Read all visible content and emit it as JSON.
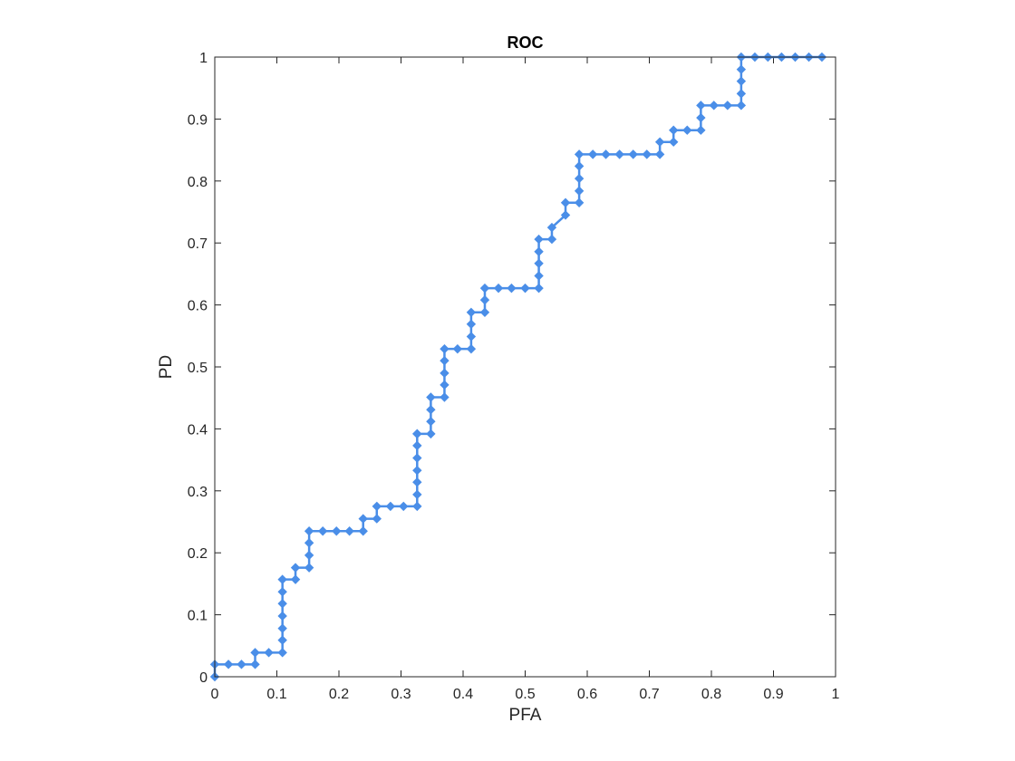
{
  "chart_data": {
    "type": "line",
    "title": "ROC",
    "xlabel": "PFA",
    "ylabel": "PD",
    "xlim": [
      0,
      1
    ],
    "ylim": [
      0,
      1
    ],
    "xticks": [
      "0",
      "0.1",
      "0.2",
      "0.3",
      "0.4",
      "0.5",
      "0.6",
      "0.7",
      "0.8",
      "0.9",
      "1"
    ],
    "yticks": [
      "0",
      "0.1",
      "0.2",
      "0.3",
      "0.4",
      "0.5",
      "0.6",
      "0.7",
      "0.8",
      "0.9",
      "1"
    ],
    "grid": false,
    "box": true,
    "line_style": "step",
    "marker": "diamond",
    "series": [
      {
        "color": "#4a8ee8",
        "x": [
          0,
          0,
          0.022,
          0.043,
          0.065,
          0.065,
          0.087,
          0.109,
          0.109,
          0.109,
          0.109,
          0.109,
          0.109,
          0.109,
          0.13,
          0.13,
          0.152,
          0.152,
          0.152,
          0.152,
          0.174,
          0.196,
          0.217,
          0.239,
          0.239,
          0.261,
          0.261,
          0.283,
          0.304,
          0.326,
          0.326,
          0.326,
          0.326,
          0.326,
          0.326,
          0.326,
          0.326,
          0.348,
          0.348,
          0.348,
          0.348,
          0.37,
          0.37,
          0.37,
          0.37,
          0.37,
          0.391,
          0.413,
          0.413,
          0.413,
          0.413,
          0.435,
          0.435,
          0.435,
          0.457,
          0.478,
          0.5,
          0.522,
          0.522,
          0.522,
          0.522,
          0.522,
          0.543,
          0.543,
          0.565,
          0.565,
          0.587,
          0.587,
          0.587,
          0.587,
          0.587,
          0.609,
          0.63,
          0.652,
          0.674,
          0.696,
          0.717,
          0.717,
          0.739,
          0.739,
          0.761,
          0.783,
          0.783,
          0.783,
          0.804,
          0.826,
          0.848,
          0.848,
          0.848,
          0.848,
          0.848,
          0.87,
          0.891,
          0.913,
          0.935,
          0.957,
          0.978
        ],
        "y": [
          0,
          0.02,
          0.02,
          0.02,
          0.02,
          0.039,
          0.039,
          0.039,
          0.059,
          0.078,
          0.098,
          0.118,
          0.137,
          0.157,
          0.157,
          0.176,
          0.176,
          0.196,
          0.216,
          0.235,
          0.235,
          0.235,
          0.235,
          0.235,
          0.255,
          0.255,
          0.275,
          0.275,
          0.275,
          0.275,
          0.294,
          0.314,
          0.333,
          0.353,
          0.373,
          0.392,
          0.392,
          0.392,
          0.412,
          0.431,
          0.451,
          0.451,
          0.471,
          0.49,
          0.51,
          0.529,
          0.529,
          0.529,
          0.549,
          0.569,
          0.588,
          0.588,
          0.608,
          0.627,
          0.627,
          0.627,
          0.627,
          0.627,
          0.647,
          0.667,
          0.686,
          0.706,
          0.706,
          0.725,
          0.745,
          0.765,
          0.765,
          0.784,
          0.804,
          0.824,
          0.843,
          0.843,
          0.843,
          0.843,
          0.843,
          0.843,
          0.843,
          0.863,
          0.863,
          0.882,
          0.882,
          0.882,
          0.902,
          0.922,
          0.922,
          0.922,
          0.922,
          0.941,
          0.961,
          0.98,
          1.0,
          1.0,
          1.0,
          1.0,
          1.0,
          1.0,
          1.0
        ]
      }
    ]
  }
}
